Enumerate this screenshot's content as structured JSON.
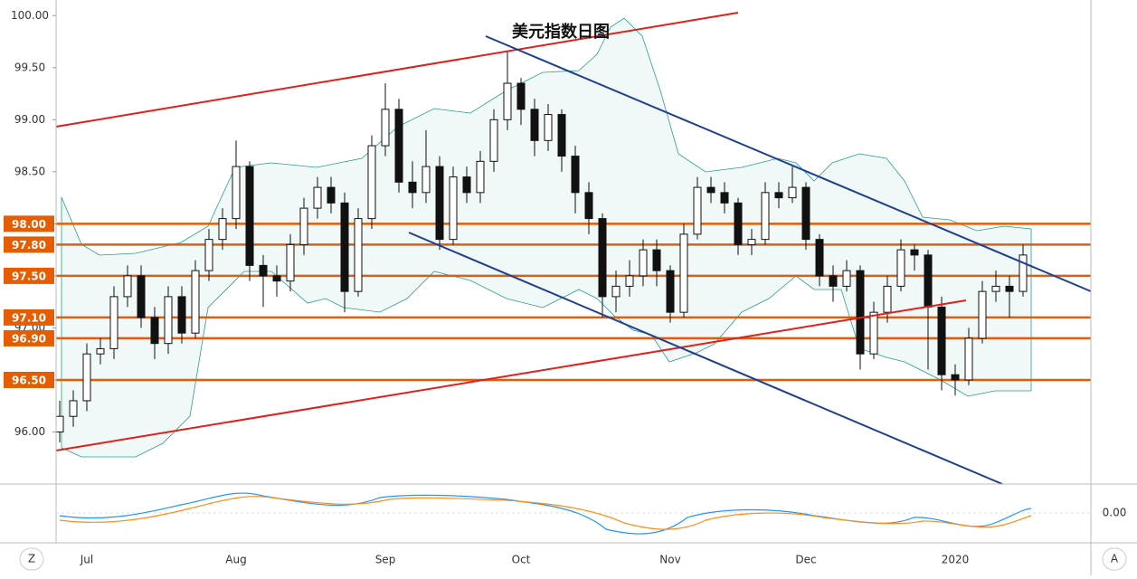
{
  "chart_data": {
    "type": "candlestick",
    "title": "美元指数日图",
    "categories": [
      null,
      null,
      "Jul",
      null,
      null,
      null,
      null,
      null,
      null,
      null,
      null,
      null,
      null,
      "Aug",
      null,
      null,
      null,
      null,
      null,
      null,
      null,
      null,
      null,
      null,
      "Sep",
      null,
      null,
      null,
      null,
      null,
      null,
      null,
      null,
      null,
      "Oct",
      null,
      null,
      null,
      null,
      null,
      null,
      null,
      null,
      null,
      null,
      "Nov",
      null,
      null,
      null,
      null,
      null,
      null,
      null,
      null,
      null,
      "Dec",
      null,
      null,
      null,
      null,
      null,
      null,
      null,
      null,
      null,
      null,
      "2020",
      null,
      null,
      null,
      null,
      null
    ],
    "open": [
      96.0,
      96.15,
      96.3,
      96.75,
      96.8,
      97.3,
      97.5,
      97.1,
      96.85,
      97.3,
      96.95,
      97.55,
      97.85,
      98.05,
      98.55,
      97.6,
      97.5,
      97.45,
      97.8,
      98.15,
      98.35,
      98.2,
      97.35,
      98.05,
      98.75,
      99.1,
      98.4,
      98.3,
      98.55,
      97.85,
      98.45,
      98.3,
      98.6,
      99.0,
      99.35,
      99.1,
      98.8,
      99.05,
      98.65,
      98.3,
      98.05,
      97.3,
      97.4,
      97.5,
      97.75,
      97.55,
      97.15,
      97.9,
      98.35,
      98.3,
      98.2,
      97.8,
      97.85,
      98.3,
      98.25,
      98.35,
      97.85,
      97.5,
      97.4,
      97.55,
      96.75,
      97.15,
      97.4,
      97.75,
      97.7,
      97.2,
      96.55,
      96.5,
      96.9,
      97.35,
      97.4,
      97.35
    ],
    "high": [
      96.3,
      96.4,
      96.85,
      96.9,
      97.4,
      97.6,
      97.6,
      97.2,
      97.4,
      97.4,
      97.65,
      97.95,
      98.15,
      98.8,
      98.6,
      97.7,
      97.6,
      97.9,
      98.25,
      98.45,
      98.45,
      98.3,
      98.15,
      98.85,
      99.35,
      99.2,
      98.6,
      98.9,
      98.65,
      98.55,
      98.55,
      98.7,
      99.1,
      99.65,
      99.4,
      99.2,
      99.15,
      99.1,
      98.75,
      98.4,
      98.1,
      97.55,
      97.65,
      97.85,
      97.85,
      97.6,
      98.0,
      98.45,
      98.45,
      98.4,
      98.25,
      97.95,
      98.4,
      98.4,
      98.55,
      98.4,
      97.9,
      97.6,
      97.65,
      97.6,
      97.25,
      97.5,
      97.85,
      97.8,
      97.75,
      97.3,
      96.65,
      97.0,
      97.45,
      97.55,
      97.5,
      97.8
    ],
    "low": [
      95.9,
      96.05,
      96.2,
      96.65,
      96.7,
      97.2,
      97.0,
      96.7,
      96.75,
      96.85,
      96.9,
      97.45,
      97.75,
      97.95,
      97.45,
      97.2,
      97.3,
      97.35,
      97.7,
      98.05,
      98.1,
      97.15,
      97.3,
      97.95,
      98.65,
      98.3,
      98.15,
      98.2,
      97.75,
      97.8,
      98.2,
      98.2,
      98.5,
      98.9,
      98.95,
      98.65,
      98.7,
      98.5,
      98.1,
      97.9,
      97.1,
      97.15,
      97.3,
      97.4,
      97.4,
      97.05,
      97.1,
      97.85,
      98.2,
      98.1,
      97.7,
      97.7,
      97.8,
      98.15,
      98.2,
      97.75,
      97.4,
      97.25,
      97.35,
      96.6,
      96.7,
      97.05,
      97.35,
      97.55,
      96.6,
      96.4,
      96.35,
      96.45,
      96.85,
      97.25,
      97.1,
      97.3
    ],
    "close": [
      96.15,
      96.3,
      96.75,
      96.8,
      97.3,
      97.5,
      97.1,
      96.85,
      97.3,
      96.95,
      97.55,
      97.85,
      98.05,
      98.55,
      97.6,
      97.5,
      97.45,
      97.8,
      98.15,
      98.35,
      98.2,
      97.35,
      98.05,
      98.75,
      99.1,
      98.4,
      98.3,
      98.55,
      97.85,
      98.45,
      98.3,
      98.6,
      99.0,
      99.35,
      99.1,
      98.8,
      99.05,
      98.65,
      98.3,
      98.05,
      97.3,
      97.4,
      97.5,
      97.75,
      97.55,
      97.15,
      97.9,
      98.35,
      98.3,
      98.2,
      97.8,
      97.85,
      98.3,
      98.25,
      98.35,
      97.85,
      97.5,
      97.4,
      97.55,
      96.75,
      97.15,
      97.4,
      97.75,
      97.7,
      97.2,
      96.55,
      96.5,
      96.9,
      97.35,
      97.4,
      97.35,
      97.7
    ],
    "ylim": [
      95.5,
      100.15
    ],
    "yticks": [
      {
        "value": 96,
        "label": "96.00"
      },
      {
        "value": 96.5,
        "label": "96.50"
      },
      {
        "value": 97,
        "label": "97.00"
      },
      {
        "value": 97.5,
        "label": "97.50"
      },
      {
        "value": 98,
        "label": "98.00"
      },
      {
        "value": 98.5,
        "label": "98.50"
      },
      {
        "value": 99,
        "label": "99.00"
      },
      {
        "value": 99.5,
        "label": "99.50"
      },
      {
        "value": 100,
        "label": "100.00"
      }
    ],
    "levels": [
      {
        "value": 98,
        "label": "98.00"
      },
      {
        "value": 97.8,
        "label": "97.80"
      },
      {
        "value": 97.5,
        "label": "97.50"
      },
      {
        "value": 97.1,
        "label": "97.10"
      },
      {
        "value": 96.9,
        "label": "96.90"
      },
      {
        "value": 96.5,
        "label": "96.50"
      }
    ],
    "level_color": "#e65c00",
    "up_color": "#ffffff",
    "down_color": "#111111",
    "indicator_yticks": [
      {
        "value": 0,
        "label": "0.00"
      }
    ],
    "buttons": [
      "Z",
      "A"
    ]
  }
}
